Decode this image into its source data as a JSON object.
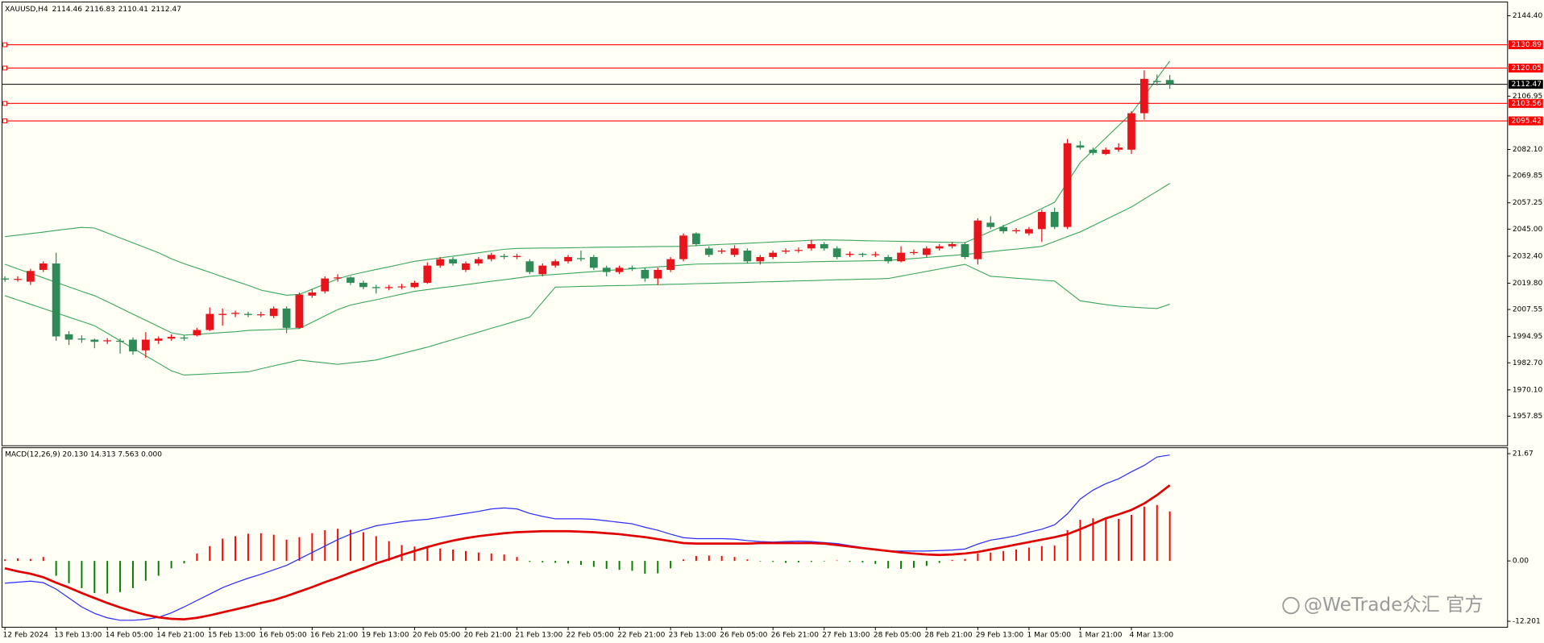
{
  "chart_data": [
    {
      "type": "candlestick",
      "title": "XAUUSD,H4",
      "categories": [
        "12 Feb 2024",
        null,
        null,
        null,
        "13 Feb 13:00",
        null,
        null,
        null,
        "14 Feb 05:00",
        null,
        null,
        null,
        "14 Feb 21:00",
        null,
        null,
        null,
        "15 Feb 13:00",
        null,
        null,
        null,
        "16 Feb 05:00",
        null,
        null,
        null,
        "16 Feb 21:00",
        null,
        null,
        null,
        "19 Feb 13:00",
        null,
        null,
        null,
        "20 Feb 05:00",
        null,
        null,
        null,
        "20 Feb 21:00",
        null,
        null,
        null,
        "21 Feb 13:00",
        null,
        null,
        null,
        "22 Feb 05:00",
        null,
        null,
        null,
        "22 Feb 21:00",
        null,
        null,
        null,
        "23 Feb 13:00",
        null,
        null,
        null,
        "26 Feb 05:00",
        null,
        null,
        null,
        "26 Feb 21:00",
        null,
        null,
        null,
        "27 Feb 13:00",
        null,
        null,
        null,
        "28 Feb 05:00",
        null,
        null,
        null,
        "28 Feb 21:00",
        null,
        null,
        null,
        "29 Feb 13:00",
        null,
        null,
        null,
        "1 Mar 05:00",
        null,
        null,
        null,
        "1 Mar 21:00",
        null,
        null,
        null,
        "4 Mar 13:00",
        null,
        null,
        null
      ],
      "open": [
        2022,
        2021.5,
        2020.5,
        2026,
        2029,
        1996,
        1994,
        1993.5,
        1992.8,
        1993,
        1993.5,
        1988.5,
        1993,
        1994,
        1994.5,
        1995.5,
        1998,
        2005,
        2005.5,
        2005.5,
        2005,
        2004.5,
        2008,
        1999,
        2014,
        2016,
        2022,
        2022.5,
        2020,
        2018,
        2017.5,
        2018,
        2018,
        2020,
        2028,
        2031,
        2026,
        2029,
        2031,
        2032.5,
        2032,
        2030,
        2024,
        2028,
        2030,
        2031.5,
        2032,
        2027,
        2025,
        2027,
        2026,
        2022,
        2026,
        2031,
        2043,
        2036,
        2034.5,
        2033,
        2035,
        2030,
        2032,
        2034.5,
        2035,
        2036,
        2038,
        2036,
        2033,
        2033.5,
        2033,
        2032,
        2030,
        2034,
        2033,
        2036,
        2037,
        2038,
        2031,
        2048,
        2046,
        2044,
        2043,
        2045,
        2053,
        2046,
        2084,
        2082,
        2080,
        2082,
        2082,
        2099,
        2114,
        2114.46
      ],
      "high": [
        2023,
        2023,
        2026.5,
        2030,
        2034,
        1997.5,
        1995.5,
        1994,
        1994.2,
        1994,
        1994.5,
        1997,
        1995,
        1996,
        1995.5,
        1999,
        2008.5,
        2008,
        2007,
        2006.5,
        2006.5,
        2009,
        2009,
        2015.5,
        2017,
        2023,
        2024,
        2023,
        2021,
        2019,
        2019,
        2019.5,
        2021,
        2029.5,
        2032,
        2032,
        2030,
        2032,
        2034,
        2033.5,
        2033.5,
        2031,
        2029,
        2031,
        2033,
        2035,
        2033,
        2028,
        2028,
        2028,
        2027,
        2027,
        2032,
        2043,
        2043.5,
        2037,
        2036,
        2037.5,
        2036,
        2033,
        2035,
        2036,
        2036.5,
        2040,
        2039,
        2037,
        2034.5,
        2034,
        2034.5,
        2033,
        2037,
        2035.5,
        2037,
        2038,
        2039,
        2039,
        2050,
        2051,
        2047,
        2045.5,
        2046,
        2054,
        2055,
        2087,
        2086,
        2083,
        2083,
        2085,
        2100,
        2119,
        2117,
        2116.83
      ],
      "low": [
        2020.5,
        2020.5,
        2019,
        2025,
        1993,
        1991,
        1992,
        1989.5,
        1991.5,
        1987,
        1986.5,
        1985,
        1991.5,
        1993,
        1993,
        1995,
        1997.5,
        2000,
        2004,
        2004,
        2004,
        2003.5,
        1996.5,
        1998.5,
        2013,
        2015,
        2020.5,
        2019,
        2017,
        2015,
        2016.5,
        2017,
        2017.5,
        2019.5,
        2027,
        2028,
        2025,
        2028,
        2030,
        2031,
        2031,
        2024,
        2023,
        2027,
        2029,
        2030,
        2026,
        2023,
        2024,
        2025.5,
        2020.5,
        2019,
        2025,
        2030,
        2037,
        2032,
        2033.5,
        2032,
        2029,
        2028.5,
        2031,
        2033.5,
        2034,
        2035,
        2035,
        2031,
        2032,
        2032,
        2032,
        2029,
        2029.5,
        2033,
        2032,
        2035,
        2036,
        2031,
        2028.5,
        2045,
        2043,
        2043,
        2042,
        2039,
        2045,
        2045,
        2082,
        2079.5,
        2079.5,
        2081,
        2080,
        2096,
        2112,
        2110.41
      ],
      "close": [
        2021.5,
        2021.8,
        2025.5,
        2029,
        1995,
        1993.5,
        1993.5,
        1992.5,
        1993.2,
        1992.5,
        1988,
        1993.5,
        1994,
        1994.8,
        1994,
        1998,
        2005.5,
        2005.5,
        2006,
        2005,
        2005.3,
        2008,
        1999,
        2014.5,
        2015.5,
        2022,
        2022.5,
        2020,
        2018,
        2017.5,
        2018,
        2018.3,
        2020,
        2028,
        2031,
        2029,
        2029,
        2031,
        2033,
        2032,
        2032.5,
        2025,
        2028,
        2030,
        2032,
        2031,
        2027,
        2025,
        2027,
        2026.8,
        2022,
        2026,
        2031,
        2042,
        2038,
        2033,
        2035,
        2036,
        2030,
        2032,
        2034,
        2035,
        2035.3,
        2038,
        2036,
        2032,
        2033.5,
        2033,
        2033.3,
        2030,
        2034,
        2034.3,
        2036,
        2037,
        2038,
        2032,
        2049,
        2046,
        2044,
        2044.5,
        2045,
        2053,
        2046,
        2085,
        2083,
        2080.5,
        2082,
        2083,
        2099,
        2115,
        2113.5,
        2112.47
      ],
      "up_color": "#e8141c",
      "down_color": "#2e8b57",
      "overlays": [
        {
          "color": "#3aa55d",
          "values": [
            2041.5,
            2042.2,
            2042.9,
            2043.6,
            2044.4,
            2045.1,
            2045.8,
            2045.5,
            2043.2,
            2040.9,
            2038.6,
            2036.3,
            2034,
            2031.2,
            2028.9,
            2026.9,
            2024.9,
            2022.8,
            2020.8,
            2018.8,
            2016.6,
            2015.4,
            2014.2,
            2014.6,
            2017,
            2019.4,
            2021.8,
            2023.6,
            2024.9,
            2026.2,
            2027.4,
            2028.7,
            2030,
            2030.8,
            2031.6,
            2032.4,
            2033.2,
            2034,
            2034.8,
            2035.6,
            2036,
            2036.1,
            2036.2,
            2036.2,
            2036.3,
            2036.4,
            2036.5,
            2036.6,
            2036.6,
            2036.7,
            2036.8,
            2036.9,
            2036.9,
            2037,
            2037.3,
            2037.6,
            2037.9,
            2038.1,
            2038.4,
            2038.7,
            2039,
            2039.3,
            2039.5,
            2039.8,
            2040,
            2039.9,
            2039.8,
            2039.6,
            2039.5,
            2039.4,
            2039.3,
            2039.2,
            2039.1,
            2038.9,
            2038.8,
            2038.7,
            2041.3,
            2043.9,
            2046.5,
            2049.1,
            2051.7,
            2054.6,
            2057.5,
            2066.8,
            2076,
            2081.7,
            2087.5,
            2093.2,
            2098.9,
            2107,
            2115.2,
            2123.3
          ]
        },
        {
          "color": "#3aa55d",
          "values": [
            2028.6,
            2026.5,
            2024.4,
            2022.3,
            2020.2,
            2018.1,
            2016,
            2014,
            2011.2,
            2008.3,
            2005.4,
            2002.5,
            1999.6,
            1996.7,
            1995.6,
            1996,
            1996.4,
            1996.8,
            1997.2,
            1997.8,
            1998,
            1998.2,
            1998.5,
            1998.7,
            2001.6,
            2004.6,
            2007.5,
            2009.6,
            2010.9,
            2012.1,
            2013.4,
            2014.7,
            2016,
            2016.8,
            2017.6,
            2018.3,
            2019.1,
            2019.9,
            2020.7,
            2021.4,
            2022.2,
            2023,
            2023.5,
            2023.9,
            2024.3,
            2024.8,
            2025.2,
            2025.7,
            2026.1,
            2026.5,
            2027,
            2027.4,
            2027.8,
            2028.3,
            2028.7,
            2028.8,
            2028.9,
            2029,
            2029.1,
            2029.3,
            2029.4,
            2029.5,
            2029.6,
            2029.8,
            2029.9,
            2030,
            2030.1,
            2030.2,
            2030.3,
            2030.4,
            2030.9,
            2031.3,
            2031.8,
            2032.3,
            2032.7,
            2033.2,
            2033.8,
            2034.5,
            2035.1,
            2035.7,
            2036.3,
            2037,
            2039.2,
            2041.5,
            2043.7,
            2046.6,
            2049.5,
            2052.4,
            2055.3,
            2059,
            2062.6,
            2066.3
          ]
        },
        {
          "color": "#3aa55d",
          "values": [
            2014,
            2012,
            2010,
            2008,
            2006,
            2004,
            2002,
            2000,
            1996.5,
            1993,
            1989.5,
            1986,
            1982.5,
            1979,
            1977,
            1977.3,
            1977.6,
            1977.9,
            1978.2,
            1978.5,
            1979.9,
            1981.3,
            1982.6,
            1984,
            1983.3,
            1982.7,
            1982,
            1982.7,
            1983.3,
            1984,
            1985.5,
            1987,
            1988.5,
            1990,
            1991.8,
            1993.5,
            1995.3,
            1997,
            1998.8,
            2000.5,
            2002.3,
            2004,
            2011,
            2018,
            2018.1,
            2018.3,
            2018.4,
            2018.6,
            2018.7,
            2018.8,
            2019,
            2019.1,
            2019.3,
            2019.4,
            2019.6,
            2019.7,
            2019.9,
            2020,
            2020.2,
            2020.4,
            2020.5,
            2020.7,
            2020.9,
            2021,
            2021.2,
            2021.4,
            2021.5,
            2021.7,
            2021.8,
            2022,
            2023.1,
            2024.2,
            2025.3,
            2026.4,
            2027.5,
            2028.6,
            2025.8,
            2023,
            2022.6,
            2022.1,
            2021.7,
            2021.2,
            2020.8,
            2016.2,
            2011.6,
            2010.7,
            2009.8,
            2009.1,
            2008.7,
            2008.3,
            2008,
            2010
          ]
        }
      ],
      "levels": [
        {
          "value": 2130.89,
          "color": "#ff0000"
        },
        {
          "value": 2120.05,
          "color": "#ff0000"
        },
        {
          "value": 2103.56,
          "color": "#ff0000"
        },
        {
          "value": 2095.42,
          "color": "#ff0000"
        }
      ],
      "bid_color": "#000000",
      "ylim": [
        1944.06,
        2150.83
      ],
      "yticks": [
        {
          "value": 2144.4,
          "label": "2144.40"
        },
        2106.95,
        {
          "value": 2082.1,
          "label": "2082.10"
        },
        2069.85,
        2057.25,
        {
          "value": 2045,
          "label": "2045.00"
        },
        {
          "value": 2032.4,
          "label": "2032.40"
        },
        {
          "value": 2019.8,
          "label": "2019.80"
        },
        2007.55,
        1994.95,
        {
          "value": 1982.7,
          "label": "1982.70"
        },
        {
          "value": 1970.1,
          "label": "1970.10"
        },
        1957.85
      ]
    },
    {
      "type": "macd",
      "title": "MACD(12,26,9) 20.130 14.313 7.563 0.000",
      "histogram": [
        0.3,
        0.5,
        0.4,
        0.8,
        -3,
        -4.5,
        -5.5,
        -6.5,
        -6.6,
        -6.3,
        -5.5,
        -4,
        -3,
        -1.5,
        -0.5,
        1.5,
        3,
        4.5,
        5,
        5.5,
        5.6,
        5.3,
        4.3,
        4.8,
        5.6,
        6.2,
        6.5,
        6.3,
        5.8,
        5,
        4,
        3.2,
        2.9,
        2.6,
        2.5,
        2.3,
        2,
        1.7,
        1.5,
        1.3,
        0.8,
        -0.2,
        -0.3,
        -0.4,
        -0.5,
        -0.8,
        -1.2,
        -1.6,
        -1.8,
        -2,
        -2.6,
        -2.5,
        -1.5,
        0.3,
        1,
        1.1,
        1,
        0.8,
        0.3,
        -0.1,
        -0.2,
        -0.4,
        -0.3,
        -0.2,
        -0.1,
        0.1,
        -0.2,
        -0.3,
        -0.6,
        -1.5,
        -1.6,
        -1.4,
        -1,
        -0.4,
        0.2,
        0.4,
        1.5,
        1.7,
        2,
        2.3,
        2.7,
        3,
        3.1,
        6.2,
        8.3,
        8.6,
        8.6,
        8.5,
        9.3,
        11,
        11.3,
        10
      ],
      "up_color": "#ff0000",
      "down_color": "#008000",
      "lines": [
        {
          "color": "#2b2bff",
          "width": 1,
          "values": [
            -4.5,
            -4.3,
            -4.1,
            -4.4,
            -5.7,
            -7.5,
            -9.3,
            -10.6,
            -11.5,
            -12,
            -12,
            -11.8,
            -11.4,
            -10.5,
            -9.3,
            -8,
            -6.7,
            -5.4,
            -4.4,
            -3.5,
            -2.7,
            -1.8,
            -0.9,
            0.4,
            1.7,
            3,
            4.3,
            5.4,
            6.3,
            7.1,
            7.5,
            7.9,
            8.2,
            8.4,
            8.8,
            9.2,
            9.6,
            10,
            10.5,
            10.7,
            10.5,
            9.6,
            9,
            8.5,
            8.5,
            8.5,
            8.4,
            8.1,
            7.8,
            7.5,
            6.8,
            6.2,
            5.4,
            4.7,
            4.5,
            4.5,
            4.5,
            4.4,
            4.1,
            3.9,
            3.8,
            3.9,
            4,
            3.9,
            3.7,
            3.5,
            3.1,
            2.7,
            2.3,
            2,
            2,
            2,
            2,
            2.1,
            2.2,
            2.4,
            3.4,
            4.2,
            4.6,
            5.1,
            5.8,
            6.4,
            7.3,
            9.5,
            12.5,
            14.3,
            15.6,
            16.6,
            18,
            19.3,
            21,
            21.4
          ]
        },
        {
          "color": "#e00000",
          "width": 2.2,
          "values": [
            -1.5,
            -2.1,
            -2.6,
            -3.3,
            -4.4,
            -5.4,
            -6.5,
            -7.5,
            -8.5,
            -9.4,
            -10.2,
            -10.9,
            -11.4,
            -11.7,
            -11.8,
            -11.5,
            -11,
            -10.4,
            -9.8,
            -9.2,
            -8.5,
            -7.9,
            -7.1,
            -6.2,
            -5.3,
            -4.3,
            -3.4,
            -2.4,
            -1.5,
            -0.5,
            0.3,
            1.2,
            2,
            2.8,
            3.5,
            4.1,
            4.6,
            5,
            5.3,
            5.6,
            5.8,
            5.9,
            6,
            6,
            6,
            5.9,
            5.8,
            5.6,
            5.4,
            5.1,
            4.8,
            4.4,
            4,
            3.6,
            3.5,
            3.5,
            3.5,
            3.5,
            3.5,
            3.6,
            3.6,
            3.6,
            3.6,
            3.6,
            3.5,
            3.2,
            2.9,
            2.6,
            2.3,
            2,
            1.7,
            1.5,
            1.3,
            1.2,
            1.3,
            1.5,
            1.8,
            2.3,
            2.8,
            3.3,
            3.8,
            4.3,
            4.8,
            5.4,
            6.4,
            7.5,
            8.6,
            9.4,
            10.3,
            11.6,
            13.3,
            15.3
          ]
        }
      ],
      "ylim": [
        -13.4,
        22.87
      ],
      "yticks": [
        21.67,
        {
          "value": 0,
          "label": "0.00"
        },
        -12.201
      ]
    }
  ],
  "watermark": "@WeTrade众汇 官方"
}
